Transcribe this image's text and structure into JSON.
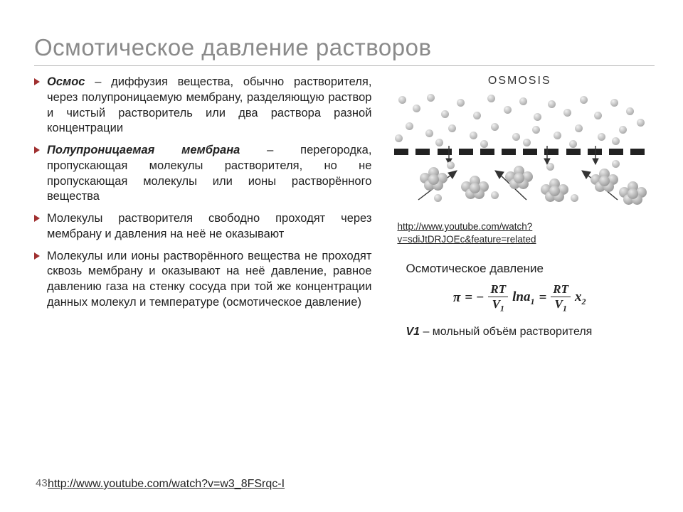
{
  "title": "Осмотическое давление растворов",
  "bullets": [
    {
      "term": "Осмос",
      "text": " – диффузия вещества, обычно растворителя, через полупроницаемую мембрану, разделяющую раствор и чистый растворитель или два раствора разной концентрации"
    },
    {
      "term": "Полупроницаемая мембрана",
      "text": " – перегородка, пропускающая молекулы растворителя, но не пропускающая молекулы или ионы растворённого вещества"
    },
    {
      "term": "",
      "text": "Молекулы растворителя свободно проходят через мембрану и давления на неё не оказывают"
    },
    {
      "term": "",
      "text": "Молекулы или ионы растворённого вещества не проходят сквозь мембрану и оказывают на неё давление, равное давлению газа на стенку сосуда при той же концентрации данных молекул и температуре (осмотическое давление)"
    }
  ],
  "diagram": {
    "label": "OSMOSIS",
    "membrane_segments": 12,
    "top_ball_color": "#c0c0c0",
    "cluster_ball_color": "#9a9a9a"
  },
  "link1": "http://www.youtube.com/watch?v=sdiJtDRJOEc&feature=related",
  "formula_title": "Осмотическое давление",
  "formula": {
    "pi": "π",
    "eq1": "= −",
    "num1": "RT",
    "den1": "V",
    "den1sub": "1",
    "ln": "lna",
    "lnsub": "1",
    "eq2": "=",
    "num2": "RT",
    "den2": "V",
    "den2sub": "1",
    "x": "x",
    "xsub": "2"
  },
  "note_v1": "V1",
  "note_text": " – мольный объём растворителя",
  "page_number": "43",
  "link2": "http://www.youtube.com/watch?v=w3_8FSrqc-I"
}
